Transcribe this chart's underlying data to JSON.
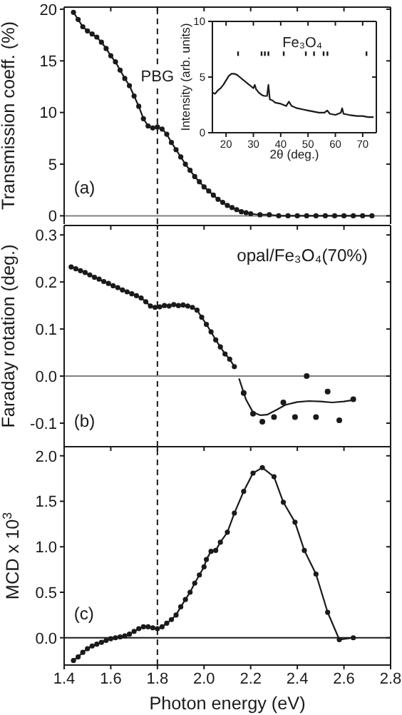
{
  "chart_data": [
    {
      "type": "line",
      "ylabel": "Transmission coeff. (%)",
      "annotations": [
        "(a)"
      ],
      "marker": "circle",
      "color": "#1a1a1a",
      "x": [
        1.44,
        1.46,
        1.48,
        1.5,
        1.52,
        1.54,
        1.56,
        1.58,
        1.6,
        1.62,
        1.64,
        1.66,
        1.68,
        1.7,
        1.72,
        1.74,
        1.76,
        1.78,
        1.8,
        1.82,
        1.84,
        1.86,
        1.88,
        1.9,
        1.92,
        1.94,
        1.96,
        1.98,
        2.0,
        2.02,
        2.04,
        2.06,
        2.08,
        2.1,
        2.12,
        2.14,
        2.16,
        2.18,
        2.2,
        2.24,
        2.28,
        2.32,
        2.36,
        2.4,
        2.44,
        2.48,
        2.52,
        2.56,
        2.6,
        2.64,
        2.68,
        2.72
      ],
      "values": [
        19.7,
        19.0,
        18.3,
        17.9,
        17.6,
        17.3,
        16.8,
        16.2,
        15.5,
        14.9,
        14.1,
        13.3,
        12.6,
        11.6,
        10.6,
        9.4,
        8.7,
        8.5,
        8.6,
        8.4,
        7.9,
        7.1,
        6.4,
        5.7,
        5.0,
        4.4,
        3.8,
        3.3,
        2.8,
        2.4,
        2.0,
        1.6,
        1.3,
        1.0,
        0.8,
        0.6,
        0.4,
        0.3,
        0.2,
        0.1,
        0.1,
        0,
        0,
        0,
        0,
        0,
        0,
        0,
        0,
        0,
        0,
        0
      ],
      "xlim": [
        1.4,
        2.8
      ],
      "xticks": [
        1.4,
        1.6,
        1.8,
        2.0,
        2.2,
        2.4,
        2.6,
        2.8
      ],
      "ylim": [
        -0.8,
        20.2
      ],
      "yticks": [
        0,
        5,
        10,
        15,
        20
      ],
      "tick_labels": "y",
      "ref_lines": [
        {
          "axis": "x",
          "value": 1.8,
          "label": "PBG",
          "color": "#1a1a1a",
          "line_style": "dashed"
        },
        {
          "axis": "y",
          "value": 0,
          "color": "#808080"
        }
      ]
    },
    {
      "type": "line",
      "xlabel": "2θ (deg.)",
      "ylabel": "Intensity (arb. units)",
      "xlim": [
        15,
        75
      ],
      "xticks": [
        20,
        30,
        40,
        50,
        60,
        70
      ],
      "ylim": [
        0,
        10
      ],
      "yticks": [
        0,
        5,
        10
      ],
      "series": [
        {
          "color": "#1a1a1a",
          "marker": "none",
          "x": [
            15,
            16,
            17,
            18,
            19,
            20,
            21,
            22,
            23,
            24,
            25,
            26,
            27,
            28,
            29,
            30,
            30.5,
            31,
            32,
            33,
            34,
            35,
            35.5,
            36,
            37,
            38,
            40,
            42,
            43,
            44,
            46,
            48,
            50,
            52,
            54,
            56,
            57,
            58,
            60,
            62,
            62.5,
            63,
            65,
            68,
            70,
            72,
            74
          ],
          "values": [
            3.6,
            3.5,
            3.8,
            4.0,
            4.3,
            4.7,
            5.1,
            5.3,
            5.3,
            5.2,
            5.0,
            4.8,
            4.6,
            4.4,
            4.2,
            4.0,
            4.3,
            3.9,
            3.6,
            3.4,
            3.3,
            3.3,
            4.3,
            3.0,
            2.9,
            2.7,
            2.6,
            2.4,
            2.8,
            2.4,
            2.2,
            2.1,
            2.0,
            1.9,
            1.8,
            1.8,
            2.0,
            1.7,
            1.6,
            1.8,
            2.2,
            1.7,
            1.6,
            1.5,
            1.5,
            1.4,
            1.4
          ]
        },
        {
          "type": "bar",
          "name": "Fe₃O₄",
          "color": "#1a1a1a",
          "x": [
            24.4,
            33.0,
            34.2,
            35.5,
            41.1,
            49.2,
            52.2,
            55.7,
            57.1,
            71.4
          ],
          "base": [
            6.9,
            6.9,
            6.9,
            6.9,
            6.9,
            6.9,
            6.9,
            6.9,
            6.9,
            6.9
          ],
          "values": [
            0.4,
            0.4,
            0.4,
            0.4,
            0.4,
            0.4,
            0.4,
            0.4,
            0.4,
            0.4
          ]
        }
      ]
    },
    {
      "type": "line",
      "ylabel": "Faraday rotation (deg.)",
      "annotations": [
        "opal/Fe₃O₄(70%)",
        "(b)"
      ],
      "xlim": [
        1.4,
        2.8
      ],
      "xticks": [
        1.4,
        1.6,
        1.8,
        2.0,
        2.2,
        2.4,
        2.6,
        2.8
      ],
      "ylim": [
        -0.15,
        0.32
      ],
      "yticks": [
        -0.1,
        {
          "value": 0,
          "label": "0.0"
        },
        0.1,
        0.2,
        0.3
      ],
      "tick_labels": "y",
      "ref_lines": [
        {
          "axis": "x",
          "value": 1.8,
          "color": "#1a1a1a",
          "line_style": "dashed"
        },
        {
          "axis": "y",
          "value": 0,
          "color": "#808080"
        }
      ],
      "series": [
        {
          "color": "#1a1a1a",
          "marker": "circle",
          "x": [
            1.43,
            1.45,
            1.47,
            1.49,
            1.51,
            1.53,
            1.55,
            1.57,
            1.59,
            1.61,
            1.63,
            1.65,
            1.67,
            1.69,
            1.71,
            1.73,
            1.75,
            1.77,
            1.79,
            1.81,
            1.83,
            1.85,
            1.87,
            1.89,
            1.91,
            1.93,
            1.95,
            1.97,
            1.99,
            2.01,
            2.03,
            2.05,
            2.07,
            2.09,
            2.11,
            2.13
          ],
          "values": [
            0.232,
            0.228,
            0.224,
            0.22,
            0.215,
            0.21,
            0.206,
            0.201,
            0.197,
            0.192,
            0.188,
            0.183,
            0.179,
            0.175,
            0.171,
            0.166,
            0.158,
            0.149,
            0.146,
            0.147,
            0.15,
            0.149,
            0.152,
            0.15,
            0.151,
            0.149,
            0.146,
            0.14,
            0.125,
            0.11,
            0.094,
            0.077,
            0.062,
            0.047,
            0.036,
            0.02
          ]
        },
        {
          "type": "scatter",
          "color": "#1a1a1a",
          "marker": "circle",
          "x": [
            2.17,
            2.21,
            2.25,
            2.3,
            2.34,
            2.39,
            2.44,
            2.48,
            2.53,
            2.58,
            2.64
          ],
          "values": [
            -0.036,
            -0.08,
            -0.097,
            -0.087,
            -0.056,
            -0.087,
            0.0,
            -0.087,
            -0.033,
            -0.094,
            -0.049
          ]
        },
        {
          "color": "#1a1a1a",
          "marker": "none",
          "x": [
            2.15,
            2.18,
            2.21,
            2.24,
            2.27,
            2.31,
            2.35,
            2.4,
            2.45,
            2.5,
            2.55,
            2.6,
            2.64
          ],
          "values": [
            -0.005,
            -0.05,
            -0.077,
            -0.083,
            -0.082,
            -0.072,
            -0.061,
            -0.055,
            -0.053,
            -0.054,
            -0.056,
            -0.054,
            -0.051
          ]
        }
      ]
    },
    {
      "type": "line",
      "xlabel": "Photon energy (eV)",
      "ylabel": "MCD x 10$^{3}$",
      "annotations": [
        "(c)"
      ],
      "marker": "circle",
      "color": "#1a1a1a",
      "x": [
        1.44,
        1.46,
        1.48,
        1.5,
        1.52,
        1.54,
        1.56,
        1.58,
        1.6,
        1.62,
        1.64,
        1.66,
        1.68,
        1.7,
        1.72,
        1.74,
        1.76,
        1.78,
        1.8,
        1.82,
        1.84,
        1.86,
        1.88,
        1.9,
        1.92,
        1.94,
        1.96,
        1.98,
        2.0,
        2.01,
        2.03,
        2.05,
        2.07,
        2.1,
        2.13,
        2.17,
        2.21,
        2.25,
        2.3,
        2.34,
        2.39,
        2.43,
        2.48,
        2.53,
        2.58,
        2.64
      ],
      "values": [
        -0.25,
        -0.21,
        -0.16,
        -0.12,
        -0.09,
        -0.07,
        -0.05,
        -0.03,
        -0.01,
        0.0,
        0.01,
        0.02,
        0.04,
        0.07,
        0.1,
        0.12,
        0.12,
        0.11,
        0.1,
        0.12,
        0.16,
        0.2,
        0.25,
        0.34,
        0.42,
        0.5,
        0.6,
        0.69,
        0.78,
        0.86,
        0.95,
        0.96,
        1.05,
        1.16,
        1.37,
        1.61,
        1.81,
        1.87,
        1.77,
        1.49,
        1.27,
        0.96,
        0.7,
        0.28,
        -0.02,
        0.0
      ],
      "xlim": [
        1.4,
        2.8
      ],
      "xticks": [
        1.4,
        1.6,
        1.8,
        {
          "value": 2,
          "label": "2.0"
        },
        2.2,
        2.4,
        2.6,
        2.8
      ],
      "ylim": [
        -0.3,
        2.1
      ],
      "yticks": [
        {
          "value": 0,
          "label": "0.0"
        },
        0.5,
        {
          "value": 1,
          "label": "1.0"
        },
        1.5,
        {
          "value": 2,
          "label": "2.0"
        }
      ],
      "ref_lines": [
        {
          "axis": "x",
          "value": 1.8,
          "color": "#1a1a1a",
          "line_style": "dashed"
        },
        {
          "axis": "y",
          "value": 0,
          "color": "#1a1a1a"
        }
      ]
    }
  ]
}
